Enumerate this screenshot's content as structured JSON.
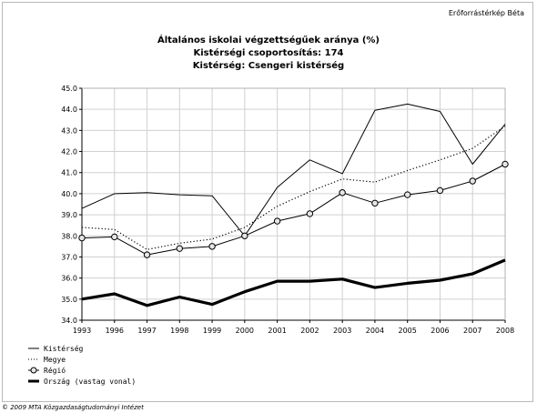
{
  "header": {
    "brand": "Erőforrástérkép Béta",
    "title_lines": [
      "Általános iskolai végzettségűek aránya (%)",
      "Kistérségi csoportosítás: 174",
      "Kistérség: Csengeri kistérség"
    ]
  },
  "footer": {
    "copyright": "© 2009 MTA Közgazdaságtudományi Intézet"
  },
  "chart_data": {
    "type": "line",
    "categories": [
      "1993",
      "1996",
      "1997",
      "1998",
      "1999",
      "2000",
      "2001",
      "2002",
      "2003",
      "2004",
      "2005",
      "2006",
      "2007",
      "2008"
    ],
    "ylim": [
      34.0,
      45.0
    ],
    "yticks": [
      "34.0",
      "35.0",
      "36.0",
      "37.0",
      "38.0",
      "39.0",
      "40.0",
      "41.0",
      "42.0",
      "43.0",
      "44.0",
      "45.0"
    ],
    "grid": true,
    "legend_position": "bottom-left",
    "series": [
      {
        "name": "Kistérség",
        "style": "thin-solid",
        "values": [
          39.3,
          40.0,
          40.05,
          39.95,
          39.9,
          38.0,
          40.3,
          41.6,
          40.95,
          43.95,
          44.25,
          43.9,
          41.4,
          43.3
        ]
      },
      {
        "name": "Megye",
        "style": "dotted",
        "values": [
          38.4,
          38.3,
          37.35,
          37.65,
          37.85,
          38.4,
          39.4,
          40.1,
          40.7,
          40.55,
          41.1,
          41.6,
          42.15,
          43.2
        ]
      },
      {
        "name": "Régió",
        "style": "circle-markers",
        "values": [
          37.9,
          37.95,
          37.1,
          37.4,
          37.5,
          38.0,
          38.7,
          39.05,
          40.05,
          39.55,
          39.95,
          40.15,
          40.6,
          41.4
        ]
      },
      {
        "name": "Ország (vastag vonal)",
        "style": "thick-solid",
        "values": [
          35.0,
          35.25,
          34.7,
          35.1,
          34.75,
          35.35,
          35.85,
          35.85,
          35.95,
          35.55,
          35.75,
          35.9,
          36.2,
          36.85
        ]
      }
    ]
  }
}
